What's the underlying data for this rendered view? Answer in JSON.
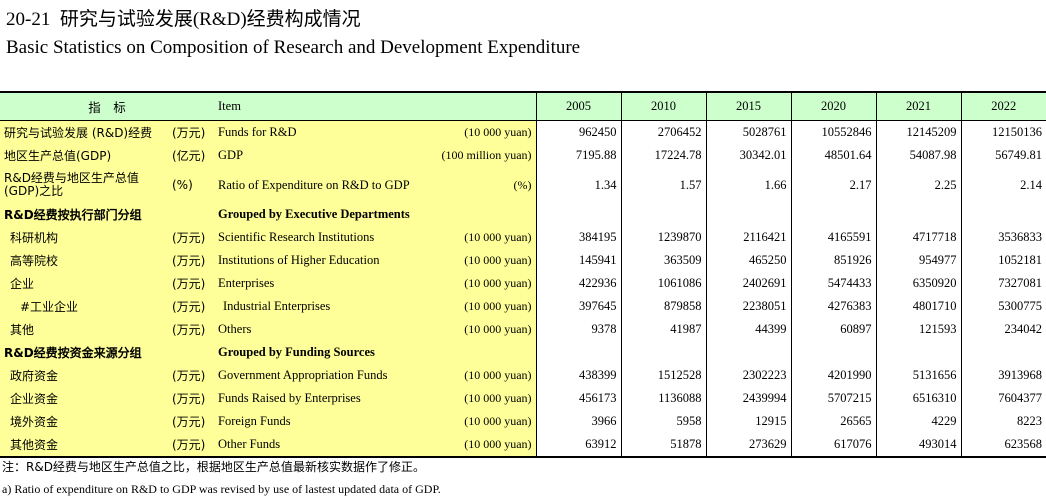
{
  "title": {
    "number": "20-21",
    "cn": "研究与试验发展(R&D)经费构成情况",
    "en": "Basic Statistics on Composition of Research and Development Expenditure"
  },
  "header": {
    "indicator": "指　标",
    "item": "Item",
    "years": [
      "2005",
      "2010",
      "2015",
      "2020",
      "2021",
      "2022"
    ]
  },
  "rows": [
    {
      "cn": "研究与试验发展 (R&D)经费",
      "unit_cn": "(万元)",
      "en": "Funds for R&D",
      "unit_en": "(10 000 yuan)",
      "values": [
        "962450",
        "2706452",
        "5028761",
        "10552846",
        "12145209",
        "12150136"
      ]
    },
    {
      "cn": "地区生产总值(GDP)",
      "unit_cn": "(亿元)",
      "en": "GDP",
      "unit_en": "(100 million yuan)",
      "values": [
        "7195.88",
        "17224.78",
        "30342.01",
        "48501.64",
        "54087.98",
        "56749.81"
      ]
    },
    {
      "cn": "R&D经费与地区生产总值 (GDP)之比",
      "unit_cn": "(%)",
      "en": "Ratio of Expenditure on R&D to GDP",
      "unit_en": "(%)",
      "values": [
        "1.34",
        "1.57",
        "1.66",
        "2.17",
        "2.25",
        "2.14"
      ]
    },
    {
      "cn": "R&D经费按执行部门分组",
      "unit_cn": "",
      "en": "Grouped by Executive Departments",
      "unit_en": "",
      "values": [
        "",
        "",
        "",
        "",
        "",
        ""
      ]
    },
    {
      "cn": "科研机构",
      "unit_cn": "(万元)",
      "en": "Scientific Research Institutions",
      "unit_en": "(10 000 yuan)",
      "values": [
        "384195",
        "1239870",
        "2116421",
        "4165591",
        "4717718",
        "3536833"
      ]
    },
    {
      "cn": "高等院校",
      "unit_cn": "(万元)",
      "en": "Institutions of Higher Education",
      "unit_en": "(10 000 yuan)",
      "values": [
        "145941",
        "363509",
        "465250",
        "851926",
        "954977",
        "1052181"
      ]
    },
    {
      "cn": "企业",
      "unit_cn": "(万元)",
      "en": "Enterprises",
      "unit_en": "(10 000 yuan)",
      "values": [
        "422936",
        "1061086",
        "2402691",
        "5474433",
        "6350920",
        "7327081"
      ]
    },
    {
      "cn": "#工业企业",
      "unit_cn": "(万元)",
      "en": "Industrial Enterprises",
      "unit_en": "(10 000 yuan)",
      "values": [
        "397645",
        "879858",
        "2238051",
        "4276383",
        "4801710",
        "5300775"
      ]
    },
    {
      "cn": "其他",
      "unit_cn": "(万元)",
      "en": "Others",
      "unit_en": "(10 000 yuan)",
      "values": [
        "9378",
        "41987",
        "44399",
        "60897",
        "121593",
        "234042"
      ]
    },
    {
      "cn": "R&D经费按资金来源分组",
      "unit_cn": "",
      "en": "Grouped by Funding Sources",
      "unit_en": "",
      "values": [
        "",
        "",
        "",
        "",
        "",
        ""
      ]
    },
    {
      "cn": "政府资金",
      "unit_cn": "(万元)",
      "en": "Government Appropriation Funds",
      "unit_en": "(10 000 yuan)",
      "values": [
        "438399",
        "1512528",
        "2302223",
        "4201990",
        "5131656",
        "3913968"
      ]
    },
    {
      "cn": "企业资金",
      "unit_cn": "(万元)",
      "en": "Funds Raised by Enterprises",
      "unit_en": "(10 000 yuan)",
      "values": [
        "456173",
        "1136088",
        "2439994",
        "5707215",
        "6516310",
        "7604377"
      ]
    },
    {
      "cn": "境外资金",
      "unit_cn": "(万元)",
      "en": "Foreign Funds",
      "unit_en": "(10 000 yuan)",
      "values": [
        "3966",
        "5958",
        "12915",
        "26565",
        "4229",
        "8223"
      ]
    },
    {
      "cn": "其他资金",
      "unit_cn": "(万元)",
      "en": "Other Funds",
      "unit_en": "(10 000 yuan)",
      "values": [
        "63912",
        "51878",
        "273629",
        "617076",
        "493014",
        "623568"
      ]
    }
  ],
  "notes": {
    "cn": "注：R&D经费与地区生产总值之比，根据地区生产总值最新核实数据作了修正。",
    "en": "a) Ratio of expenditure on R&D to GDP was revised by use of lastest updated data of GDP."
  }
}
